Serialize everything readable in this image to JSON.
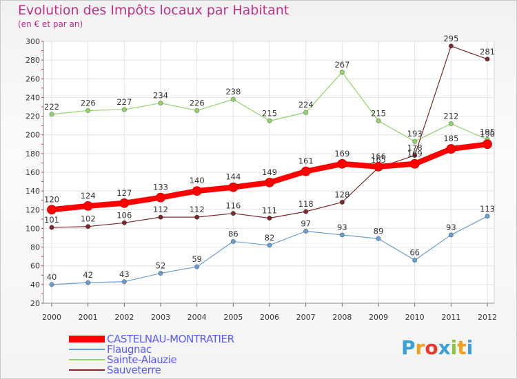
{
  "header": {
    "title": "Evolution des Impôts locaux par Habitant",
    "subtitle": "(en € et par an)"
  },
  "logo": {
    "text": "Proxiti",
    "letter_colors": [
      "#3aa0d8",
      "#f2a020",
      "#e8382a",
      "#3aa0d8",
      "#8cc63f",
      "#f2a020",
      "#3aa0d8"
    ]
  },
  "chart_data": {
    "type": "line",
    "title": "Evolution des Impôts locaux par Habitant",
    "subtitle": "(en € et par an)",
    "x": [
      "2000",
      "2001",
      "2002",
      "2003",
      "2004",
      "2005",
      "2006",
      "2007",
      "2008",
      "2009",
      "2010",
      "2011",
      "2012"
    ],
    "ylim": [
      20,
      300
    ],
    "yticks": [
      20,
      40,
      60,
      80,
      100,
      120,
      140,
      160,
      180,
      200,
      220,
      240,
      260,
      280,
      300
    ],
    "grid": true,
    "legend_position": "bottom-left",
    "series": [
      {
        "name": "CASTELNAU-MONTRATIER",
        "color": "#ff0000",
        "values": [
          120,
          124,
          127,
          133,
          140,
          144,
          149,
          161,
          169,
          166,
          169,
          185,
          190
        ],
        "labels": [
          "120",
          "124",
          "127",
          "133",
          "140",
          "144",
          "149",
          "161",
          "169",
          "166",
          "169",
          "185",
          "190"
        ],
        "emphasis": true
      },
      {
        "name": "Flaugnac",
        "color": "#6a9ed0",
        "values": [
          40,
          42,
          43,
          52,
          59,
          86,
          82,
          97,
          93,
          89,
          66,
          93,
          113
        ],
        "labels": [
          "40",
          "42",
          "43",
          "52",
          "59",
          "86",
          "82",
          "97",
          "93",
          "89",
          "66",
          "93",
          "113"
        ]
      },
      {
        "name": "Sainte-Alauzie",
        "color": "#92d36a",
        "values": [
          222,
          226,
          227,
          234,
          226,
          238,
          215,
          224,
          267,
          215,
          193,
          212,
          195
        ],
        "labels": [
          "222",
          "226",
          "227",
          "234",
          "226",
          "238",
          "215",
          "224",
          "267",
          "215",
          "193",
          "212",
          "195"
        ]
      },
      {
        "name": "Sauveterre",
        "color": "#7a2a2a",
        "values": [
          101,
          102,
          106,
          112,
          112,
          116,
          111,
          118,
          128,
          165,
          178,
          295,
          281
        ],
        "labels": [
          "101",
          "102",
          "106",
          "112",
          "112",
          "116",
          "111",
          "118",
          "128",
          "165",
          "178",
          "295",
          "281"
        ]
      }
    ]
  }
}
